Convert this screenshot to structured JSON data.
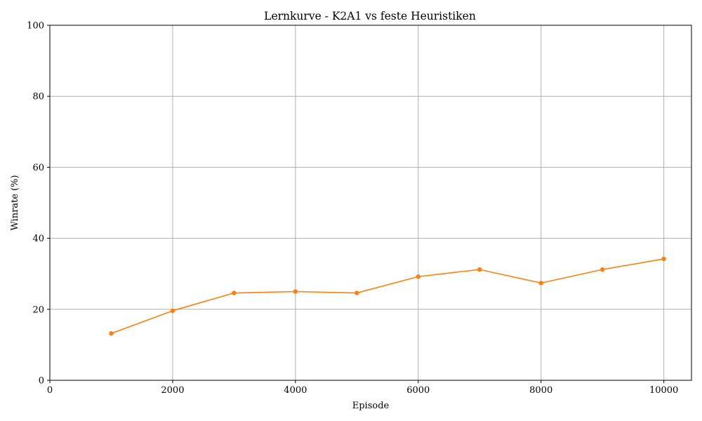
{
  "chart_data": {
    "type": "line",
    "title": "Lernkurve - K2A1 vs feste Heuristiken",
    "xlabel": "Episode",
    "ylabel": "Winrate (%)",
    "xlim": [
      0,
      10450
    ],
    "ylim": [
      0,
      100
    ],
    "xticks": [
      0,
      2000,
      4000,
      6000,
      8000,
      10000
    ],
    "yticks": [
      0,
      20,
      40,
      60,
      80,
      100
    ],
    "grid": true,
    "series": [
      {
        "color": "#ff7f0e",
        "marker": "circle",
        "x": [
          1000,
          2000,
          3000,
          4000,
          5000,
          6000,
          7000,
          8000,
          9000,
          10000
        ],
        "y": [
          13.2,
          19.6,
          24.6,
          25.0,
          24.6,
          29.2,
          31.2,
          27.4,
          31.2,
          34.2
        ]
      }
    ]
  }
}
